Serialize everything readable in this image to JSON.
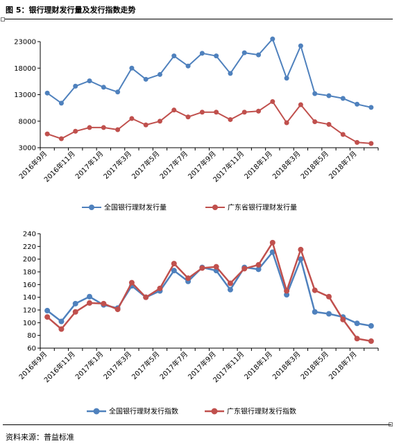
{
  "figure": {
    "title": "图 5：银行理财发行量及发行指数走势",
    "source": "资料来源：普益标准"
  },
  "chart_data": [
    {
      "type": "line",
      "title": "",
      "xlabel": "",
      "ylabel": "",
      "categories": [
        "2016年9月",
        "2016年10月",
        "2016年11月",
        "2016年12月",
        "2017年1月",
        "2017年2月",
        "2017年3月",
        "2017年4月",
        "2017年5月",
        "2017年6月",
        "2017年7月",
        "2017年8月",
        "2017年9月",
        "2017年10月",
        "2017年11月",
        "2017年12月",
        "2018年1月",
        "2018年2月",
        "2018年3月",
        "2018年4月",
        "2018年5月",
        "2018年6月",
        "2018年7月",
        "2018年8月"
      ],
      "x_tick_labels": [
        "2016年9月",
        "2016年11月",
        "2017年1月",
        "2017年3月",
        "2017年5月",
        "2017年7月",
        "2017年9月",
        "2017年11月",
        "2018年1月",
        "2018年3月",
        "2018年5月",
        "2018年7月"
      ],
      "ylim": [
        3000,
        23000
      ],
      "yticks": [
        3000,
        8000,
        13000,
        18000,
        23000
      ],
      "grid": false,
      "legend_position": "bottom",
      "series": [
        {
          "name": "全国银行理财发行量",
          "color": "#4f81bd",
          "values": [
            13300,
            11400,
            14600,
            15600,
            14400,
            13500,
            18000,
            15900,
            16800,
            20300,
            18400,
            20800,
            20300,
            17000,
            20900,
            20500,
            23500,
            16100,
            22200,
            13200,
            12800,
            12300,
            11200,
            10600
          ]
        },
        {
          "name": "广东省银行理财发行量",
          "color": "#c0504d",
          "values": [
            5600,
            4700,
            6100,
            6800,
            6800,
            6400,
            8500,
            7300,
            8000,
            10100,
            8800,
            9700,
            9700,
            8300,
            9700,
            9900,
            11700,
            7700,
            11100,
            7900,
            7400,
            5500,
            4000,
            3800
          ]
        }
      ]
    },
    {
      "type": "line",
      "title": "",
      "xlabel": "",
      "ylabel": "",
      "categories": [
        "2016年9月",
        "2016年10月",
        "2016年11月",
        "2016年12月",
        "2017年1月",
        "2017年2月",
        "2017年3月",
        "2017年4月",
        "2017年5月",
        "2017年6月",
        "2017年7月",
        "2017年8月",
        "2017年9月",
        "2017年10月",
        "2017年11月",
        "2017年12月",
        "2018年1月",
        "2018年2月",
        "2018年3月",
        "2018年4月",
        "2018年5月",
        "2018年6月",
        "2018年7月",
        "2018年8月"
      ],
      "x_tick_labels": [
        "2016年9月",
        "2016年11月",
        "2017年1月",
        "2017年3月",
        "2017年5月",
        "2017年7月",
        "2017年9月",
        "2017年11月",
        "2018年1月",
        "2018年3月",
        "2018年5月",
        "2018年7月"
      ],
      "ylim": [
        60,
        240
      ],
      "yticks": [
        60,
        80,
        100,
        120,
        140,
        160,
        180,
        200,
        220,
        240
      ],
      "grid": false,
      "legend_position": "bottom",
      "series": [
        {
          "name": "全国银行理财发行指数",
          "color": "#4f81bd",
          "values": [
            119,
            102,
            130,
            141,
            128,
            123,
            158,
            140,
            150,
            182,
            165,
            187,
            182,
            152,
            187,
            184,
            211,
            144,
            200,
            117,
            114,
            109,
            99,
            95
          ]
        },
        {
          "name": "广东银行理财发行指数",
          "color": "#c0504d",
          "values": [
            109,
            90,
            117,
            131,
            130,
            121,
            163,
            140,
            154,
            193,
            170,
            186,
            188,
            162,
            185,
            191,
            226,
            150,
            215,
            151,
            141,
            105,
            75,
            71
          ]
        }
      ]
    }
  ]
}
